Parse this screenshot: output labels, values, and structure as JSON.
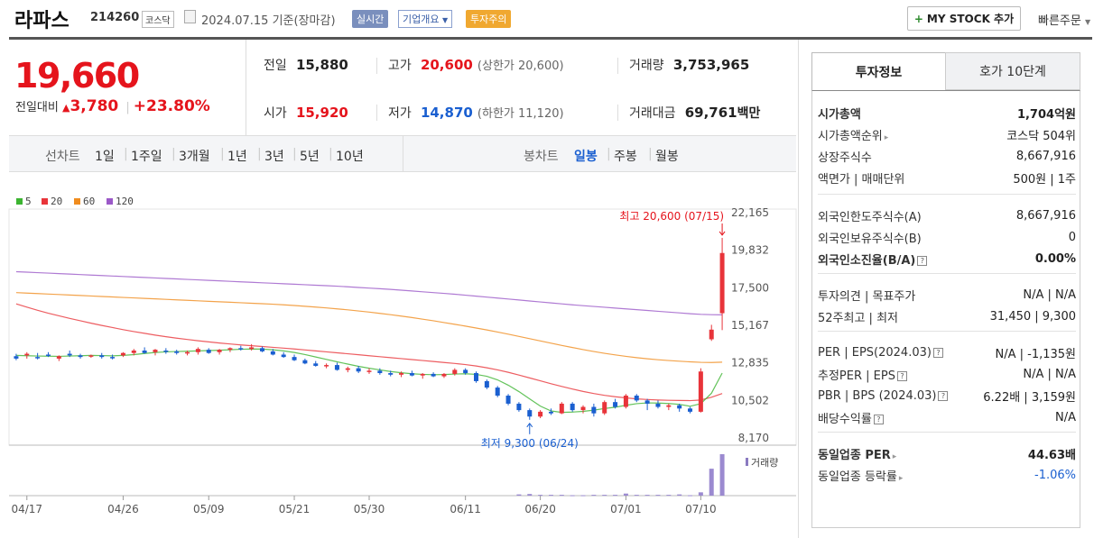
{
  "header": {
    "name": "라파스",
    "code": "214260",
    "market": "코스닥",
    "date": "2024.07.15",
    "basis": "기준(장마감)",
    "realtime": "실시간",
    "company": "기업개요",
    "caution": "투자주의",
    "mystock": "MY STOCK 추가",
    "quick_order": "빠른주문"
  },
  "price": {
    "current": "19,660",
    "change_label": "전일대비",
    "change": "3,780",
    "change_pct": "+23.80%",
    "prev_label": "전일",
    "prev": "15,880",
    "open_label": "시가",
    "open": "15,920",
    "high_label": "고가",
    "high": "20,600",
    "upper_limit": "(상한가 20,600)",
    "low_label": "저가",
    "low": "14,870",
    "lower_limit": "(하한가 11,120)",
    "volume_label": "거래량",
    "volume": "3,753,965",
    "amount_label": "거래대금",
    "amount": "69,761",
    "amount_unit": "백만"
  },
  "periods": {
    "line_label": "선차트",
    "line_items": [
      "1일",
      "1주일",
      "3개월",
      "1년",
      "3년",
      "5년",
      "10년"
    ],
    "candle_label": "봉차트",
    "candle_items": [
      "일봉",
      "주봉",
      "월봉"
    ],
    "candle_active": "일봉"
  },
  "chart_data": {
    "type": "candlestick",
    "legend": [
      {
        "name": "5",
        "color": "#3cb431"
      },
      {
        "name": "20",
        "color": "#e8343a"
      },
      {
        "name": "60",
        "color": "#f08c1e"
      },
      {
        "name": "120",
        "color": "#9b59c8"
      }
    ],
    "y_ticks": [
      "22,165",
      "19,832",
      "17,500",
      "15,167",
      "12,835",
      "10,502",
      "8,170"
    ],
    "ylim": [
      8170,
      22165
    ],
    "x_ticks": [
      "04/17",
      "04/26",
      "05/09",
      "05/21",
      "05/30",
      "06/11",
      "06/20",
      "07/01",
      "07/10"
    ],
    "high_annotation": "최고 20,600 (07/15)",
    "low_annotation": "최저 9,300 (06/24)",
    "volume_label": "거래량",
    "ohlc": [
      [
        13250,
        13400,
        13000,
        13100
      ],
      [
        13300,
        13500,
        13100,
        13400
      ],
      [
        13200,
        13450,
        13050,
        13150
      ],
      [
        13350,
        13500,
        13200,
        13300
      ],
      [
        13100,
        13300,
        12950,
        13250
      ],
      [
        13400,
        13600,
        13200,
        13300
      ],
      [
        13300,
        13400,
        13100,
        13200
      ],
      [
        13250,
        13350,
        13150,
        13300
      ],
      [
        13300,
        13450,
        13100,
        13200
      ],
      [
        13200,
        13350,
        13050,
        13150
      ],
      [
        13300,
        13500,
        13200,
        13450
      ],
      [
        13450,
        13700,
        13300,
        13600
      ],
      [
        13600,
        13800,
        13400,
        13450
      ],
      [
        13500,
        13700,
        13300,
        13650
      ],
      [
        13600,
        13750,
        13400,
        13550
      ],
      [
        13550,
        13650,
        13350,
        13450
      ],
      [
        13450,
        13600,
        13300,
        13500
      ],
      [
        13500,
        13800,
        13350,
        13700
      ],
      [
        13650,
        13750,
        13400,
        13450
      ],
      [
        13500,
        13700,
        13350,
        13650
      ],
      [
        13650,
        13800,
        13500,
        13750
      ],
      [
        13750,
        13900,
        13600,
        13700
      ],
      [
        13700,
        14000,
        13600,
        13800
      ],
      [
        13750,
        13850,
        13500,
        13550
      ],
      [
        13550,
        13700,
        13300,
        13350
      ],
      [
        13350,
        13500,
        13150,
        13200
      ],
      [
        13200,
        13350,
        12950,
        13000
      ],
      [
        13000,
        13100,
        12750,
        12800
      ],
      [
        12800,
        12950,
        12600,
        12650
      ],
      [
        12650,
        12800,
        12500,
        12700
      ],
      [
        12700,
        12850,
        12350,
        12400
      ],
      [
        12400,
        12600,
        12250,
        12500
      ],
      [
        12500,
        12650,
        12200,
        12300
      ],
      [
        12300,
        12500,
        12150,
        12350
      ],
      [
        12350,
        12500,
        12100,
        12200
      ],
      [
        12200,
        12350,
        12000,
        12100
      ],
      [
        12100,
        12300,
        11950,
        12200
      ],
      [
        12200,
        12350,
        12000,
        12050
      ],
      [
        12050,
        12200,
        11850,
        12150
      ],
      [
        12150,
        12250,
        11950,
        12000
      ],
      [
        12000,
        12200,
        11900,
        12150
      ],
      [
        12150,
        12500,
        12050,
        12400
      ],
      [
        12400,
        12500,
        12100,
        12200
      ],
      [
        12200,
        12300,
        11600,
        11700
      ],
      [
        11700,
        11800,
        11200,
        11300
      ],
      [
        11300,
        11400,
        10700,
        10800
      ],
      [
        10800,
        10900,
        10200,
        10300
      ],
      [
        10300,
        10400,
        9800,
        9900
      ],
      [
        9900,
        10000,
        9300,
        9500
      ],
      [
        9500,
        9900,
        9400,
        9800
      ],
      [
        9800,
        10000,
        9600,
        9700
      ],
      [
        9700,
        10400,
        9650,
        10300
      ],
      [
        10300,
        10400,
        9800,
        9900
      ],
      [
        9900,
        10200,
        9700,
        10100
      ],
      [
        10100,
        10300,
        9500,
        9700
      ],
      [
        9700,
        10500,
        9600,
        10400
      ],
      [
        10400,
        10600,
        10000,
        10100
      ],
      [
        10100,
        10900,
        10000,
        10800
      ],
      [
        10800,
        10900,
        10400,
        10500
      ],
      [
        10500,
        10600,
        9900,
        10300
      ],
      [
        10300,
        10500,
        10000,
        10100
      ],
      [
        10100,
        10300,
        9900,
        10200
      ],
      [
        10200,
        10300,
        9800,
        10000
      ],
      [
        10000,
        10100,
        9700,
        9800
      ],
      [
        9800,
        12500,
        9750,
        12300
      ],
      [
        14300,
        15200,
        14200,
        14900
      ],
      [
        15920,
        20600,
        14870,
        19660
      ]
    ],
    "ma5": [
      13300,
      13280,
      13260,
      13250,
      13240,
      13260,
      13280,
      13300,
      13290,
      13270,
      13300,
      13350,
      13420,
      13480,
      13520,
      13540,
      13560,
      13580,
      13600,
      13620,
      13650,
      13680,
      13700,
      13690,
      13650,
      13580,
      13480,
      13350,
      13200,
      13050,
      12900,
      12760,
      12620,
      12500,
      12400,
      12300,
      12220,
      12160,
      12120,
      12100,
      12110,
      12140,
      12160,
      12120,
      12000,
      11780,
      11450,
      11050,
      10600,
      10150,
      9850,
      9760,
      9780,
      9820,
      9900,
      10000,
      10080,
      10200,
      10300,
      10350,
      10340,
      10310,
      10260,
      10140,
      10300,
      10950,
      12200
    ],
    "ma20": [
      16500,
      16300,
      16100,
      15920,
      15760,
      15600,
      15450,
      15300,
      15160,
      15030,
      14900,
      14780,
      14670,
      14560,
      14460,
      14370,
      14290,
      14210,
      14140,
      14070,
      14010,
      13950,
      13900,
      13850,
      13800,
      13750,
      13700,
      13640,
      13580,
      13520,
      13460,
      13400,
      13340,
      13280,
      13220,
      13160,
      13100,
      13040,
      12980,
      12920,
      12860,
      12800,
      12730,
      12640,
      12530,
      12400,
      12250,
      12080,
      11900,
      11720,
      11540,
      11370,
      11210,
      11060,
      10930,
      10820,
      10730,
      10660,
      10600,
      10560,
      10530,
      10510,
      10500,
      10490,
      10530,
      10700,
      10930
    ],
    "ma60": [
      17200,
      17170,
      17140,
      17110,
      17080,
      17050,
      17020,
      16990,
      16960,
      16930,
      16900,
      16870,
      16840,
      16810,
      16780,
      16750,
      16720,
      16690,
      16660,
      16630,
      16600,
      16570,
      16540,
      16510,
      16480,
      16440,
      16400,
      16350,
      16300,
      16250,
      16190,
      16130,
      16060,
      15990,
      15910,
      15830,
      15740,
      15650,
      15550,
      15450,
      15340,
      15230,
      15120,
      15000,
      14880,
      14750,
      14620,
      14480,
      14340,
      14200,
      14060,
      13920,
      13790,
      13660,
      13540,
      13430,
      13330,
      13240,
      13160,
      13090,
      13030,
      12980,
      12940,
      12900,
      12870,
      12860,
      12880
    ],
    "ma120": [
      18500,
      18470,
      18440,
      18410,
      18380,
      18350,
      18320,
      18290,
      18260,
      18230,
      18200,
      18170,
      18140,
      18110,
      18080,
      18050,
      18020,
      17990,
      17960,
      17930,
      17900,
      17870,
      17840,
      17810,
      17780,
      17750,
      17720,
      17690,
      17660,
      17630,
      17600,
      17560,
      17520,
      17480,
      17440,
      17400,
      17350,
      17300,
      17250,
      17200,
      17150,
      17100,
      17040,
      16980,
      16920,
      16860,
      16800,
      16740,
      16680,
      16620,
      16560,
      16500,
      16440,
      16390,
      16340,
      16290,
      16240,
      16190,
      16140,
      16090,
      16040,
      15990,
      15940,
      15890,
      15850,
      15830,
      15820
    ],
    "volume": [
      0,
      0,
      0,
      0,
      0,
      0,
      0,
      0,
      0,
      0,
      0,
      0,
      0,
      0,
      0,
      0,
      0,
      0,
      0,
      0,
      0,
      0,
      0,
      0,
      0,
      0,
      0,
      0,
      0,
      0,
      0,
      0,
      0,
      0,
      0,
      0,
      0,
      0,
      0,
      0,
      0,
      0,
      0,
      0,
      0,
      0,
      0,
      0.03,
      0.04,
      0.02,
      0.02,
      0.02,
      0.01,
      0.01,
      0.02,
      0.02,
      0.02,
      0.05,
      0.02,
      0.02,
      0.02,
      0.02,
      0.03,
      0.01,
      0.08,
      0.65,
      1.0
    ]
  },
  "panel": {
    "tab_active": "투자정보",
    "tab_other": "호가 10단계",
    "rows": [
      {
        "k": "시가총액",
        "v": "1,704억원",
        "bold": true
      },
      {
        "k": "시가총액순위",
        "v": "코스닥 504위",
        "arrow": true
      },
      {
        "k": "상장주식수",
        "v": "8,667,916"
      },
      {
        "k": "액면가 | 매매단위",
        "v": "500원 | 1주"
      },
      {
        "k": "외국인한도주식수(A)",
        "v": "8,667,916"
      },
      {
        "k": "외국인보유주식수(B)",
        "v": "0"
      },
      {
        "k": "외국인소진율(B/A)",
        "v": "0.00%",
        "bold": true,
        "q": true
      },
      {
        "k": "투자의견 | 목표주가",
        "v": "N/A | N/A"
      },
      {
        "k": "52주최고 | 최저",
        "v": "31,450 | 9,300"
      },
      {
        "k": "PER | EPS(2024.03)",
        "v": "N/A | -1,135원",
        "q": true
      },
      {
        "k": "추정PER | EPS",
        "v": "N/A | N/A",
        "q": true
      },
      {
        "k": "PBR | BPS (2024.03)",
        "v": "6.22배 | 3,159원",
        "q": true
      },
      {
        "k": "배당수익률",
        "v": "N/A",
        "q": true
      },
      {
        "k": "동일업종 PER",
        "v": "44.63배",
        "bold": true,
        "arrow": true
      },
      {
        "k": "동일업종 등락률",
        "v": "-1.06%",
        "arrow": true,
        "blue": true
      }
    ]
  }
}
